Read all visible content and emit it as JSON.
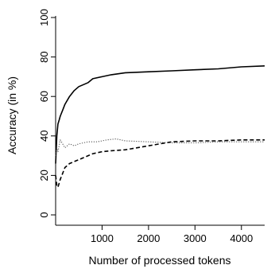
{
  "chart_data": {
    "type": "line",
    "xlabel": "Number of processed tokens",
    "ylabel": "Accuracy (in %)",
    "xlim": [
      0,
      4500
    ],
    "ylim": [
      0,
      100
    ],
    "xticks": [
      1000,
      2000,
      3000,
      4000
    ],
    "yticks": [
      0,
      20,
      40,
      60,
      80,
      100
    ],
    "grid": false,
    "legend": "none",
    "series": [
      {
        "style": "solid",
        "color": "#000000",
        "x": [
          0,
          25,
          50,
          75,
          100,
          150,
          200,
          300,
          400,
          500,
          600,
          700,
          800,
          1000,
          1200,
          1500,
          2000,
          2500,
          3000,
          3500,
          4000,
          4500
        ],
        "y": [
          26,
          40,
          46,
          48,
          50,
          53,
          56,
          60,
          63,
          65,
          66,
          67,
          69,
          70,
          71,
          72,
          72.5,
          73,
          73.5,
          74,
          75,
          75.5
        ]
      },
      {
        "style": "dashed",
        "color": "#000000",
        "x": [
          0,
          25,
          50,
          75,
          100,
          150,
          200,
          300,
          400,
          500,
          600,
          800,
          1000,
          1200,
          1500,
          2000,
          2500,
          3000,
          3500,
          4000,
          4500
        ],
        "y": [
          20,
          15,
          14,
          16,
          18,
          21,
          24,
          26,
          27,
          28,
          29,
          31,
          32,
          32.5,
          33,
          35,
          37,
          37.5,
          37.5,
          38,
          38
        ]
      },
      {
        "style": "dotted",
        "color": "#555555",
        "x": [
          0,
          25,
          50,
          75,
          100,
          150,
          200,
          250,
          300,
          400,
          500,
          700,
          900,
          1100,
          1300,
          1500,
          2000,
          2500,
          3000,
          3500,
          4000,
          4500
        ],
        "y": [
          30,
          34,
          32,
          35,
          38,
          36,
          34,
          35,
          36,
          35,
          36,
          37,
          37,
          38,
          38.5,
          37.5,
          37,
          36.5,
          36.5,
          37,
          37,
          37
        ]
      }
    ]
  }
}
